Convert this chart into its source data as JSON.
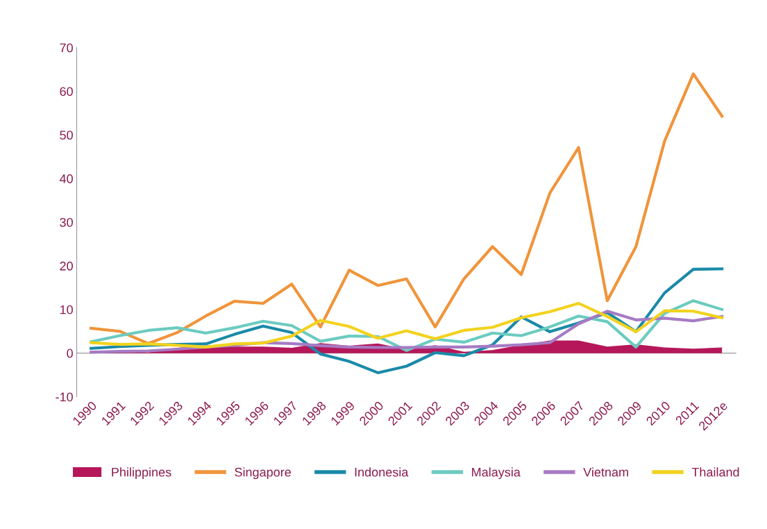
{
  "chart_data": {
    "type": "line",
    "categories": [
      "1990",
      "1991",
      "1992",
      "1993",
      "1994",
      "1995",
      "1996",
      "1997",
      "1998",
      "1999",
      "2000",
      "2001",
      "2002",
      "2003",
      "2004",
      "2005",
      "2006",
      "2007",
      "2008",
      "2009",
      "2010",
      "2011",
      "2012e"
    ],
    "ylim": [
      -10,
      70
    ],
    "yticks": [
      -10,
      0,
      10,
      20,
      30,
      40,
      50,
      60,
      70
    ],
    "grid": false,
    "legend": "bottom",
    "ref_lines": [
      {
        "axis": "y",
        "value": 0,
        "color": "#999999"
      }
    ],
    "series": [
      {
        "name": "Philippines",
        "type": "area",
        "color": "#b5175a",
        "values": [
          0.5,
          0.5,
          0.2,
          1.2,
          1.6,
          1.5,
          1.5,
          1.2,
          2.3,
          1.7,
          2.2,
          0.9,
          1.8,
          0.3,
          0.7,
          1.9,
          2.9,
          2.9,
          1.5,
          2.0,
          1.3,
          1.0,
          1.3
        ]
      },
      {
        "name": "Singapore",
        "color": "#f0943a",
        "values": [
          5.7,
          5.0,
          2.2,
          4.7,
          8.5,
          11.9,
          11.4,
          15.8,
          6.0,
          19.0,
          15.5,
          17.0,
          6.0,
          17.0,
          24.4,
          18.0,
          36.7,
          47.1,
          12.0,
          24.4,
          48.6,
          64.0,
          54.3
        ]
      },
      {
        "name": "Indonesia",
        "color": "#1a8aa8",
        "values": [
          1.1,
          1.5,
          1.8,
          2.0,
          2.1,
          4.3,
          6.2,
          4.7,
          -0.2,
          -1.9,
          -4.5,
          -3.0,
          0.1,
          -0.6,
          1.9,
          8.3,
          4.9,
          6.9,
          9.3,
          4.9,
          13.8,
          19.2,
          19.3
        ]
      },
      {
        "name": "Malaysia",
        "color": "#6ccbc0",
        "values": [
          2.6,
          4.0,
          5.2,
          5.8,
          4.6,
          5.8,
          7.3,
          6.3,
          2.7,
          3.9,
          3.8,
          0.6,
          3.2,
          2.5,
          4.6,
          4.0,
          6.0,
          8.5,
          7.2,
          1.4,
          9.1,
          12.0,
          10.0
        ]
      },
      {
        "name": "Vietnam",
        "color": "#a67bc4",
        "values": [
          0.2,
          0.4,
          0.5,
          0.9,
          1.4,
          1.8,
          2.4,
          2.2,
          1.7,
          1.4,
          1.3,
          1.3,
          1.4,
          1.4,
          1.6,
          1.9,
          2.4,
          6.7,
          9.6,
          7.6,
          8.0,
          7.4,
          8.4
        ]
      },
      {
        "name": "Thailand",
        "color": "#f2d21e",
        "values": [
          2.4,
          2.0,
          2.1,
          1.8,
          1.4,
          2.1,
          2.3,
          3.9,
          7.5,
          6.1,
          3.4,
          5.1,
          3.3,
          5.2,
          5.9,
          8.1,
          9.5,
          11.4,
          8.4,
          4.9,
          9.7,
          9.6,
          8.1
        ]
      }
    ]
  }
}
